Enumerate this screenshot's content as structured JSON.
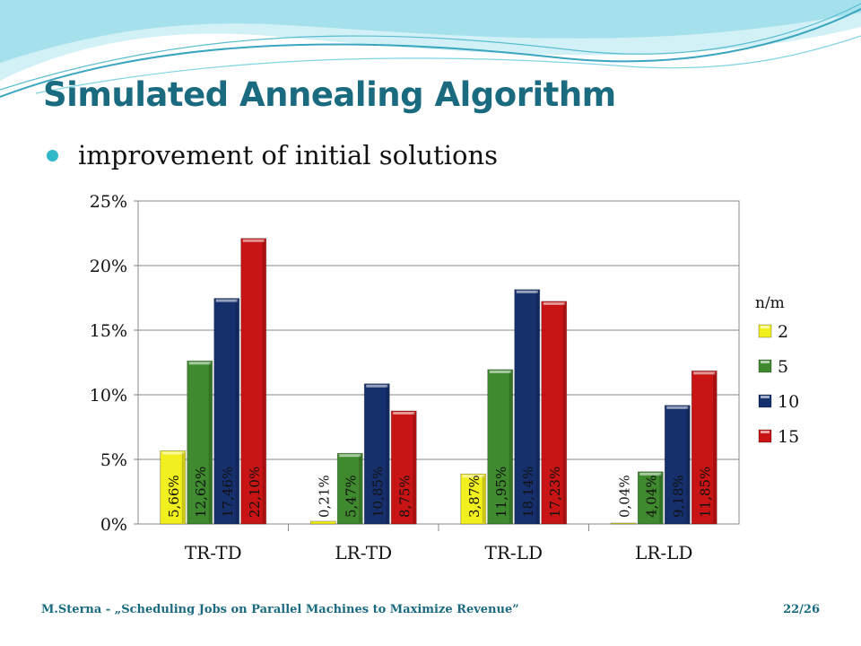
{
  "slide": {
    "title": "Simulated Annealing Algorithm",
    "bullet": "improvement of initial solutions",
    "footer": "M.Sterna - „Scheduling Jobs on Parallel Machines to Maximize Revenue”",
    "page": "22/26"
  },
  "colors": {
    "title": "#1a6a80",
    "bullet": "#2fb8c8",
    "wave_light": "#c9eef5",
    "wave_mid": "#7fd3e3",
    "wave_dark": "#3aa5bf"
  },
  "chart_data": {
    "type": "bar",
    "categories": [
      "TR-TD",
      "LR-TD",
      "TR-LD",
      "LR-LD"
    ],
    "legend_title": "n/m",
    "legend_position": "right",
    "ylim": [
      0,
      25
    ],
    "yticks": [
      "0%",
      "5%",
      "10%",
      "15%",
      "20%",
      "25%"
    ],
    "grid": true,
    "series": [
      {
        "name": "2",
        "color": "#f2ef1e",
        "values": [
          5.66,
          0.21,
          3.87,
          0.04
        ],
        "labels": [
          "5,66%",
          "0,21%",
          "3,87%",
          "0,04%"
        ]
      },
      {
        "name": "5",
        "color": "#3f8a2e",
        "values": [
          12.62,
          5.47,
          11.95,
          4.04
        ],
        "labels": [
          "12,62%",
          "5,47%",
          "11,95%",
          "4,04%"
        ]
      },
      {
        "name": "10",
        "color": "#16306e",
        "values": [
          17.46,
          10.85,
          18.14,
          9.18
        ],
        "labels": [
          "17,46%",
          "10,85%",
          "18,14%",
          "9,18%"
        ]
      },
      {
        "name": "15",
        "color": "#c81414",
        "values": [
          22.1,
          8.75,
          17.23,
          11.85
        ],
        "labels": [
          "22,10%",
          "8,75%",
          "17,23%",
          "11,85%"
        ]
      }
    ]
  }
}
